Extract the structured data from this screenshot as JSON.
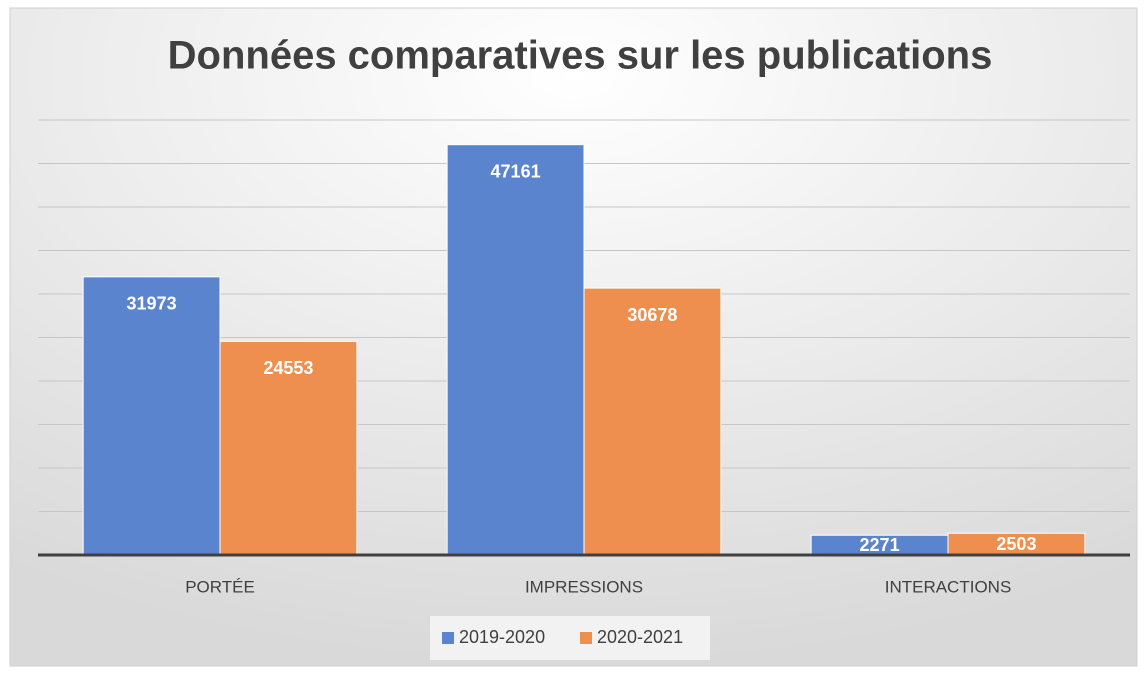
{
  "chart_data": {
    "type": "bar",
    "title": "Données comparatives sur les publications",
    "categories": [
      "PORTÉE",
      "IMPRESSIONS",
      "INTERACTIONS"
    ],
    "series": [
      {
        "name": "2019-2020",
        "color": "#5b84cf",
        "values": [
          31973,
          47161,
          2271
        ]
      },
      {
        "name": "2020-2021",
        "color": "#ee8f4f",
        "values": [
          24553,
          30678,
          2503
        ]
      }
    ],
    "ylim": [
      0,
      50000
    ],
    "yticks": [
      0,
      5000,
      10000,
      15000,
      20000,
      25000,
      30000,
      35000,
      40000,
      45000,
      50000
    ],
    "grid": true,
    "legend": "bottom"
  }
}
